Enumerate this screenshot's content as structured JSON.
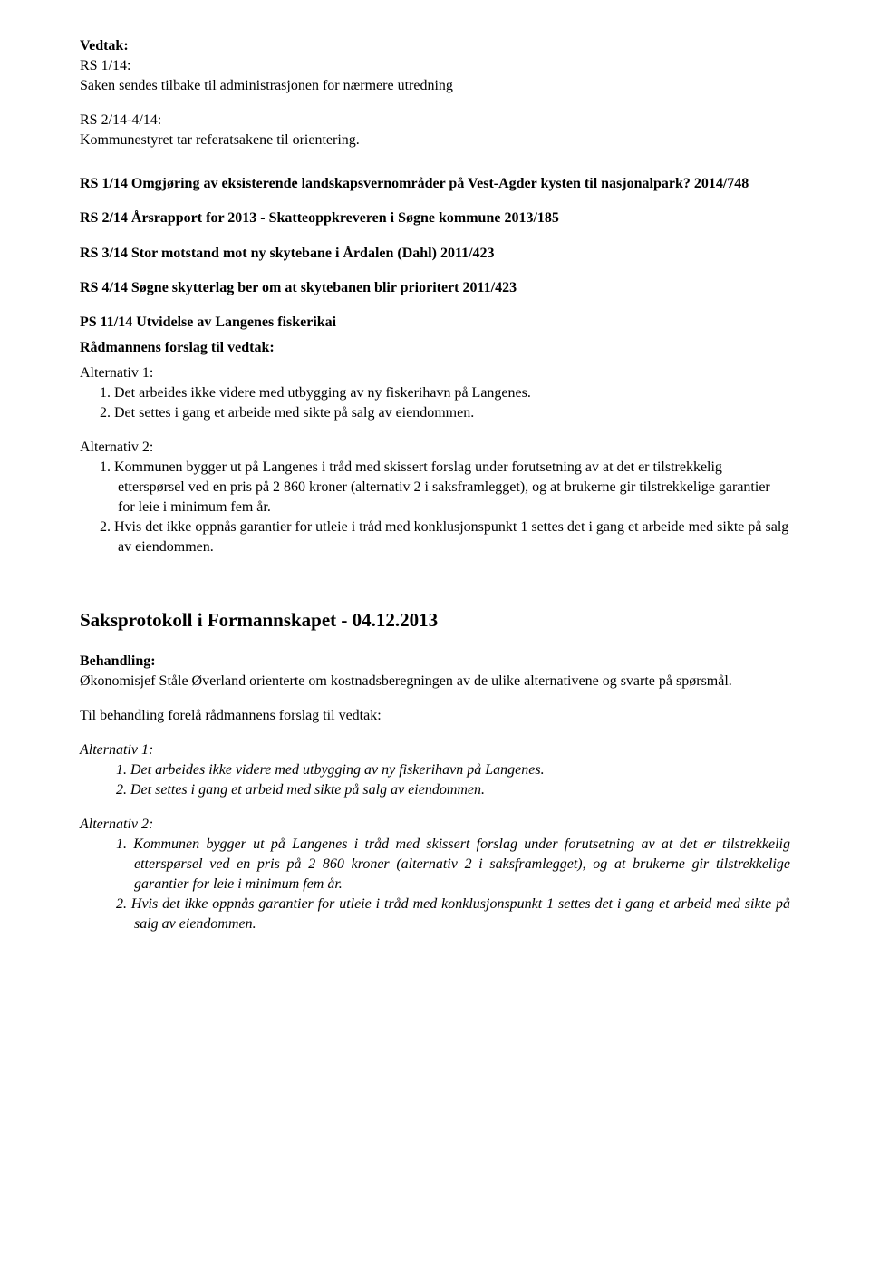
{
  "intro": {
    "label_vedtak": "Vedtak:",
    "rs1_line1": "RS 1/14:",
    "rs1_line2": "Saken sendes tilbake til administrasjonen for nærmere utredning",
    "rs24_line1": "RS 2/14-4/14:",
    "rs24_line2": "Kommunestyret tar referatsakene til orientering."
  },
  "refs": {
    "rs1": "RS 1/14 Omgjøring av eksisterende landskapsvernområder på Vest-Agder kysten til nasjonalpark? 2014/748",
    "rs2": "RS 2/14 Årsrapport for 2013 - Skatteoppkreveren i Søgne kommune 2013/185",
    "rs3": "RS 3/14 Stor motstand mot ny skytebane i Årdalen (Dahl) 2011/423",
    "rs4": "RS 4/14 Søgne skytterlag ber om at skytebanen blir prioritert 2011/423",
    "ps11": "PS 11/14 Utvidelse av Langenes fiskerikai"
  },
  "radmannen": {
    "heading": "Rådmannens forslag til vedtak:",
    "alt1_label": "Alternativ 1:",
    "alt1_items": [
      "1. Det arbeides ikke videre med utbygging av ny fiskerihavn på Langenes.",
      "2. Det settes i gang et arbeide med sikte på salg av eiendommen."
    ],
    "alt2_label": "Alternativ 2:",
    "alt2_items": [
      "1. Kommunen bygger ut på Langenes i tråd med skissert forslag under forutsetning av at det er tilstrekkelig etterspørsel ved en pris på 2 860 kroner (alternativ 2 i saksframlegget), og at brukerne gir tilstrekkelige garantier for leie i minimum fem år.",
      "2. Hvis det ikke oppnås garantier for utleie i tråd med konklusjonspunkt 1 settes det i gang et arbeide med sikte på salg av eiendommen."
    ]
  },
  "saksprotokoll": {
    "heading": "Saksprotokoll i Formannskapet - 04.12.2013",
    "behandling_label": "Behandling:",
    "behandling_text": "Økonomisjef Ståle Øverland orienterte om kostnadsberegningen av de ulike alternativene og svarte på spørsmål.",
    "til_behandling": "Til behandling forelå rådmannens forslag til vedtak:",
    "alt1_label": "Alternativ 1:",
    "alt1_items": [
      "1.   Det arbeides ikke videre med utbygging av ny fiskerihavn på Langenes.",
      "2.   Det settes i gang et arbeid med sikte på salg av eiendommen."
    ],
    "alt2_label": "Alternativ 2:",
    "alt2_items": [
      "1.   Kommunen bygger ut på Langenes i tråd med skissert forslag under forutsetning av at det er tilstrekkelig etterspørsel ved en pris på 2 860 kroner (alternativ 2 i saksframlegget), og at brukerne gir tilstrekkelige garantier for leie i minimum fem år.",
      "2.   Hvis det ikke oppnås garantier for utleie i tråd med konklusjonspunkt 1 settes det i gang et arbeid med sikte på salg av eiendommen."
    ]
  }
}
